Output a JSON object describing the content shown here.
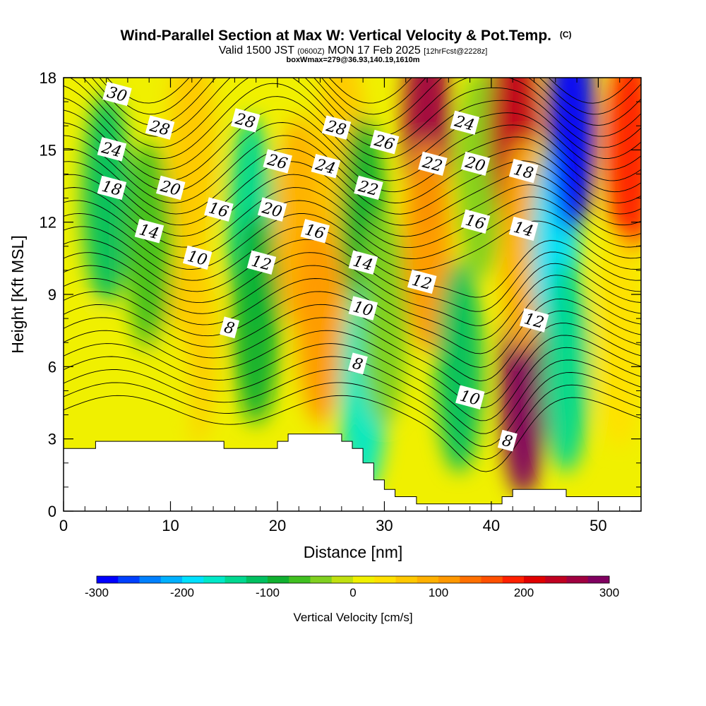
{
  "title": {
    "main": "Wind-Parallel Section at Max W: Vertical Velocity & Pot.Temp.",
    "copyright": "(C)",
    "valid_prefix": "Valid 1500 JST",
    "valid_utc": "(0600Z)",
    "valid_date": "MON 17 Feb 2025",
    "forecast": "[12hrFcst@2228z]",
    "boxwmax": "boxWmax=279@36.93,140.19,1610m"
  },
  "chart_data": {
    "type": "contour-section",
    "xlabel": "Distance [nm]",
    "ylabel": "Height [Kft MSL]",
    "xlim": [
      0,
      54
    ],
    "ylim": [
      0,
      18
    ],
    "x_ticks": [
      0,
      10,
      20,
      30,
      40,
      50
    ],
    "y_ticks": [
      0,
      3,
      6,
      9,
      12,
      15,
      18
    ],
    "x_tick_labels": [
      "0",
      "10",
      "20",
      "30",
      "40",
      "50"
    ],
    "y_tick_labels": [
      "0",
      "3",
      "6",
      "9",
      "12",
      "15",
      "18"
    ],
    "colorbar": {
      "title": "Vertical Velocity [cm/s]",
      "min": -300,
      "max": 300,
      "step": 25,
      "tick_values": [
        -300,
        -200,
        -100,
        0,
        100,
        200,
        300
      ],
      "tick_labels": [
        "-300",
        "-200",
        "-100",
        "0",
        "100",
        "200",
        "300"
      ],
      "colors": [
        "#0000ff",
        "#0040ff",
        "#0080ff",
        "#00b0ff",
        "#00e0ff",
        "#00e8c8",
        "#00d890",
        "#00c060",
        "#10b030",
        "#40c020",
        "#80d020",
        "#c0e010",
        "#f0f000",
        "#ffe000",
        "#ffc800",
        "#ffb000",
        "#ff9800",
        "#ff7000",
        "#ff5000",
        "#ff2000",
        "#e00000",
        "#c00020",
        "#a00040",
        "#800060"
      ]
    },
    "vertical_velocity_cells": [
      {
        "x": 4,
        "y": 13,
        "w": -105
      },
      {
        "x": 8,
        "y": 11,
        "w": -60
      },
      {
        "x": 12,
        "y": 15,
        "w": 60
      },
      {
        "x": 12,
        "y": 7,
        "w": 65
      },
      {
        "x": 17.5,
        "y": 12,
        "w": -130
      },
      {
        "x": 18,
        "y": 8,
        "w": -90
      },
      {
        "x": 22,
        "y": 12,
        "w": 95
      },
      {
        "x": 24,
        "y": 8,
        "w": 105
      },
      {
        "x": 26,
        "y": 15,
        "w": 60
      },
      {
        "x": 28,
        "y": 12,
        "w": -80
      },
      {
        "x": 28,
        "y": 5,
        "w": -170
      },
      {
        "x": 30,
        "y": 8,
        "w": -40
      },
      {
        "x": 34,
        "y": 16,
        "w": 270
      },
      {
        "x": 34,
        "y": 11,
        "w": 110
      },
      {
        "x": 37,
        "y": 6,
        "w": -110
      },
      {
        "x": 39,
        "y": 14,
        "w": -50
      },
      {
        "x": 42,
        "y": 16,
        "w": 230
      },
      {
        "x": 43,
        "y": 5,
        "w": 279
      },
      {
        "x": 43,
        "y": 11,
        "w": 90
      },
      {
        "x": 46,
        "y": 11,
        "w": -180
      },
      {
        "x": 47.5,
        "y": 16,
        "w": -290
      },
      {
        "x": 47,
        "y": 6,
        "w": -130
      },
      {
        "x": 53,
        "y": 15,
        "w": 190
      },
      {
        "x": 52,
        "y": 7,
        "w": 40
      },
      {
        "x": 2,
        "y": 4,
        "w": 20
      },
      {
        "x": 10,
        "y": 3.5,
        "w": 10
      }
    ],
    "potential_temperature_contours": {
      "interval": 1,
      "labeled": [
        {
          "text": "30",
          "x": 5,
          "y": 17.3
        },
        {
          "text": "28",
          "x": 9,
          "y": 15.9
        },
        {
          "text": "24",
          "x": 4.5,
          "y": 15
        },
        {
          "text": "18",
          "x": 4.5,
          "y": 13.4
        },
        {
          "text": "20",
          "x": 10,
          "y": 13.4
        },
        {
          "text": "14",
          "x": 8,
          "y": 11.6
        },
        {
          "text": "16",
          "x": 14.5,
          "y": 12.5
        },
        {
          "text": "10",
          "x": 12.5,
          "y": 10.5
        },
        {
          "text": "8",
          "x": 15.5,
          "y": 7.6
        },
        {
          "text": "28",
          "x": 17,
          "y": 16.2
        },
        {
          "text": "26",
          "x": 20,
          "y": 14.5
        },
        {
          "text": "20",
          "x": 19.5,
          "y": 12.5
        },
        {
          "text": "12",
          "x": 18.5,
          "y": 10.3
        },
        {
          "text": "16",
          "x": 23.5,
          "y": 11.6
        },
        {
          "text": "24",
          "x": 24.5,
          "y": 14.3
        },
        {
          "text": "28",
          "x": 25.5,
          "y": 15.9
        },
        {
          "text": "26",
          "x": 30,
          "y": 15.3
        },
        {
          "text": "22",
          "x": 28.5,
          "y": 13.4
        },
        {
          "text": "14",
          "x": 28,
          "y": 10.3
        },
        {
          "text": "10",
          "x": 28,
          "y": 8.4
        },
        {
          "text": "8",
          "x": 27.5,
          "y": 6.1
        },
        {
          "text": "12",
          "x": 33.5,
          "y": 9.5
        },
        {
          "text": "22",
          "x": 34.5,
          "y": 14.4
        },
        {
          "text": "24",
          "x": 37.5,
          "y": 16.1
        },
        {
          "text": "20",
          "x": 38.5,
          "y": 14.4
        },
        {
          "text": "16",
          "x": 38.5,
          "y": 12
        },
        {
          "text": "18",
          "x": 43,
          "y": 14.1
        },
        {
          "text": "14",
          "x": 43,
          "y": 11.7
        },
        {
          "text": "12",
          "x": 44,
          "y": 7.9
        },
        {
          "text": "10",
          "x": 38,
          "y": 4.7
        },
        {
          "text": "8",
          "x": 41.5,
          "y": 2.9
        }
      ]
    },
    "terrain_kft": [
      [
        0,
        2.6
      ],
      [
        3,
        2.6
      ],
      [
        3,
        2.9
      ],
      [
        15,
        2.9
      ],
      [
        15,
        2.6
      ],
      [
        20,
        2.6
      ],
      [
        20,
        2.9
      ],
      [
        21,
        2.9
      ],
      [
        21,
        3.2
      ],
      [
        26,
        3.2
      ],
      [
        26,
        2.9
      ],
      [
        27,
        2.9
      ],
      [
        27,
        2.6
      ],
      [
        28,
        2.6
      ],
      [
        28,
        2.0
      ],
      [
        29,
        2.0
      ],
      [
        29,
        1.3
      ],
      [
        30,
        1.3
      ],
      [
        30,
        0.9
      ],
      [
        31,
        0.9
      ],
      [
        31,
        0.6
      ],
      [
        33,
        0.6
      ],
      [
        33,
        0.3
      ],
      [
        41,
        0.3
      ],
      [
        41,
        0.6
      ],
      [
        42,
        0.6
      ],
      [
        42,
        0.9
      ],
      [
        46,
        0.9
      ],
      [
        46,
        0.9
      ],
      [
        47,
        0.9
      ],
      [
        47,
        0.6
      ],
      [
        54,
        0.6
      ]
    ]
  }
}
